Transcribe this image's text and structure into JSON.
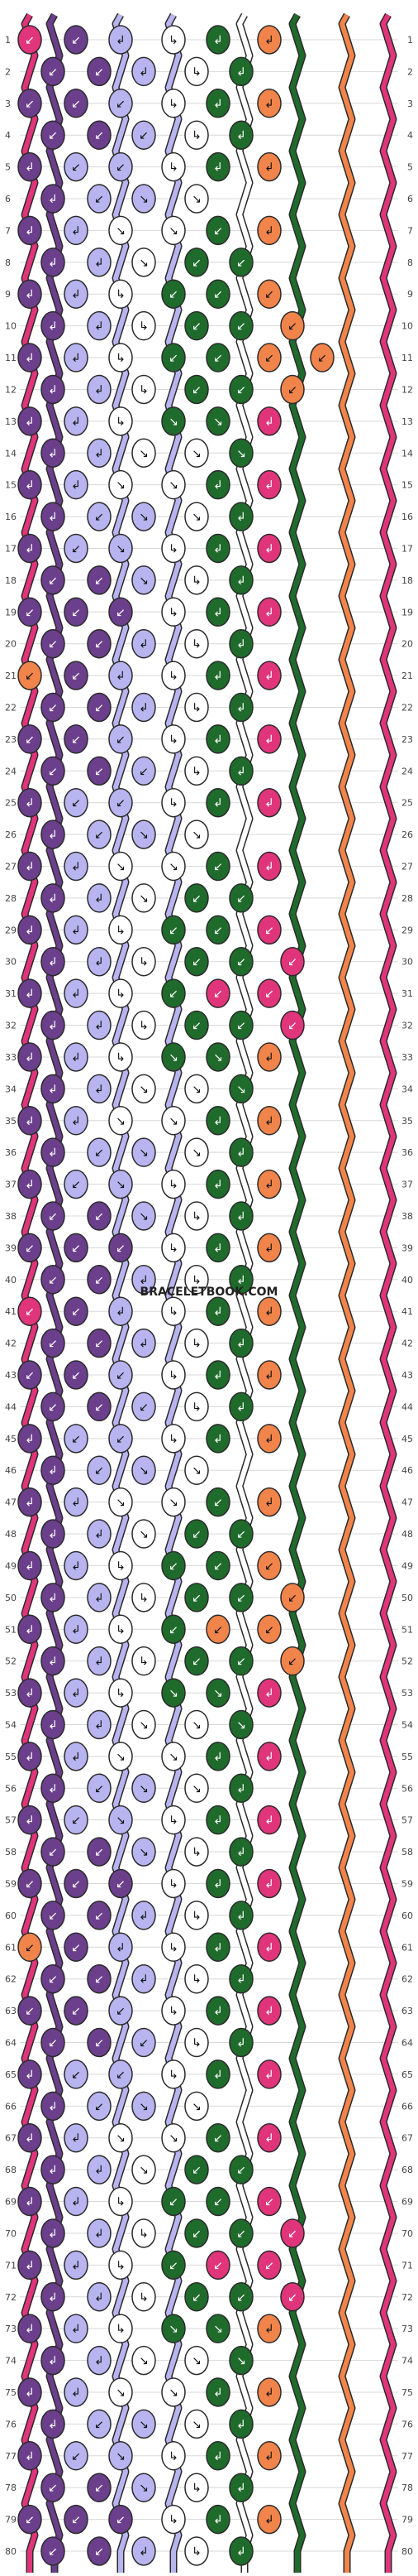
{
  "watermark": "BRACELETBOOK.COM",
  "colors": {
    "pink": "#e0357a",
    "purple": "#6b3f8c",
    "lavender": "#b7b4f0",
    "white": "#ffffff",
    "green": "#1f6b2c",
    "orange": "#f0844a",
    "outline": "#2a2a2a",
    "grid": "#d8d8d8"
  },
  "strings_at_top": [
    "pink",
    "purple",
    "purple",
    "lavender",
    "lavender",
    "white",
    "white",
    "green",
    "green",
    "orange",
    "orange"
  ],
  "row_count": 80,
  "row_labels_left": [
    "1",
    "2",
    "3",
    "4",
    "5",
    "6",
    "7",
    "8",
    "9",
    "10",
    "11",
    "12",
    "13",
    "14",
    "15",
    "16",
    "17",
    "18",
    "19",
    "20",
    "21",
    "22",
    "23",
    "24",
    "25",
    "26",
    "27",
    "28",
    "29",
    "30",
    "31",
    "32",
    "33",
    "34",
    "35",
    "36",
    "37",
    "38",
    "39",
    "40",
    "41",
    "42",
    "43",
    "44",
    "45",
    "46",
    "47",
    "48",
    "49",
    "50",
    "51",
    "52",
    "53",
    "54",
    "55",
    "56",
    "57",
    "58",
    "59",
    "60",
    "61",
    "62",
    "63",
    "64",
    "65",
    "66",
    "67",
    "68",
    "69",
    "70",
    "71",
    "72",
    "73",
    "74",
    "75",
    "76",
    "77",
    "78",
    "79",
    "80"
  ],
  "row_labels_right": [
    "1",
    "2",
    "3",
    "4",
    "5",
    "6",
    "7",
    "8",
    "9",
    "10",
    "11",
    "12",
    "13",
    "14",
    "15",
    "16",
    "17",
    "18",
    "19",
    "20",
    "21",
    "22",
    "23",
    "24",
    "25",
    "26",
    "27",
    "28",
    "29",
    "30",
    "31",
    "32",
    "33",
    "34",
    "35",
    "36",
    "37",
    "38",
    "39",
    "40",
    "41",
    "42",
    "43",
    "44",
    "45",
    "46",
    "47",
    "48",
    "49",
    "50",
    "51",
    "52",
    "53",
    "54",
    "55",
    "56",
    "57",
    "58",
    "59",
    "60",
    "61",
    "62",
    "63",
    "64",
    "65",
    "66",
    "67",
    "68",
    "69",
    "70",
    "71",
    "72",
    "73",
    "74",
    "75",
    "76",
    "77",
    "78",
    "79",
    "80"
  ],
  "knot_symbols": {
    "forward": "↘",
    "backward": "↙",
    "forward_backward": "↳",
    "backward_forward": "↲"
  },
  "knot_rows": [
    [
      "pink:backward",
      "purple:backward",
      "lavender:backward_forward",
      "white:forward_backward",
      "green:backward_forward",
      "orange:backward_forward"
    ],
    [
      "purple:backward",
      "purple:backward",
      "lavender:backward_forward",
      "white:forward_backward",
      "green:backward_forward"
    ],
    [
      "purple:backward",
      "purple:backward",
      "lavender:backward",
      "white:forward_backward",
      "green:backward_forward",
      "orange:backward_forward"
    ],
    [
      "purple:backward",
      "purple:backward",
      "lavender:backward",
      "white:forward_backward",
      "green:backward_forward"
    ],
    [
      "purple:backward_forward",
      "lavender:backward",
      "lavender:backward",
      "white:forward_backward",
      "green:backward_forward",
      "orange:backward_forward"
    ],
    [
      "purple:backward_forward",
      "lavender:backward",
      "lavender:forward",
      "white:forward"
    ],
    [
      "purple:backward_forward",
      "lavender:backward_forward",
      "white:forward",
      "white:forward",
      "green:backward",
      "orange:backward_forward"
    ],
    [
      "purple:backward_forward",
      "lavender:backward_forward",
      "white:forward",
      "green:backward",
      "green:backward"
    ],
    [
      "purple:backward_forward",
      "lavender:backward_forward",
      "white:forward_backward",
      "green:backward",
      "green:backward",
      "orange:backward"
    ],
    [
      "purple:backward_forward",
      "lavender:backward_forward",
      "white:forward_backward",
      "green:backward",
      "green:backward",
      "orange:backward"
    ],
    [
      "purple:backward_forward",
      "lavender:backward_forward",
      "white:forward_backward",
      "green:backward",
      "green:backward",
      "orange:backward",
      "orange:backward"
    ],
    [
      "purple:backward_forward",
      "lavender:backward_forward",
      "white:forward_backward",
      "green:backward",
      "green:backward",
      "orange:backward"
    ],
    [
      "purple:backward_forward",
      "lavender:backward_forward",
      "white:forward_backward",
      "green:forward",
      "green:forward",
      "pink:backward_forward"
    ],
    [
      "purple:backward_forward",
      "lavender:backward_forward",
      "white:forward",
      "white:forward",
      "green:forward"
    ],
    [
      "purple:backward_forward",
      "lavender:backward_forward",
      "white:forward",
      "white:forward",
      "green:backward_forward",
      "pink:backward_forward"
    ],
    [
      "purple:backward_forward",
      "lavender:backward",
      "lavender:forward",
      "white:forward",
      "green:backward_forward"
    ],
    [
      "purple:backward_forward",
      "lavender:backward",
      "lavender:forward",
      "white:forward_backward",
      "green:backward_forward",
      "pink:backward_forward"
    ],
    [
      "purple:backward",
      "purple:backward",
      "lavender:forward",
      "white:forward_backward",
      "green:backward_forward"
    ],
    [
      "purple:backward",
      "purple:backward",
      "purple:backward",
      "white:forward_backward",
      "green:backward_forward",
      "pink:backward_forward"
    ],
    [
      "purple:backward",
      "purple:backward",
      "lavender:backward_forward",
      "white:forward_backward",
      "green:backward_forward"
    ],
    [
      "orange:backward",
      "purple:backward",
      "lavender:backward_forward",
      "white:forward_backward",
      "green:backward_forward",
      "pink:backward_forward"
    ],
    [
      "purple:backward",
      "purple:backward",
      "lavender:backward_forward",
      "white:forward_backward",
      "green:backward_forward"
    ],
    [
      "purple:backward",
      "purple:backward",
      "lavender:backward",
      "white:forward_backward",
      "green:backward_forward",
      "pink:backward_forward"
    ],
    [
      "purple:backward",
      "purple:backward",
      "lavender:backward",
      "white:forward_backward",
      "green:backward_forward"
    ],
    [
      "purple:backward_forward",
      "lavender:backward",
      "lavender:backward",
      "white:forward_backward",
      "green:backward_forward",
      "pink:backward_forward"
    ],
    [
      "purple:backward_forward",
      "lavender:backward",
      "lavender:forward",
      "white:forward"
    ],
    [
      "purple:backward_forward",
      "lavender:backward_forward",
      "white:forward",
      "white:forward",
      "green:backward",
      "pink:backward_forward"
    ],
    [
      "purple:backward_forward",
      "lavender:backward_forward",
      "white:forward",
      "green:backward",
      "green:backward"
    ],
    [
      "purple:backward_forward",
      "lavender:backward_forward",
      "white:forward_backward",
      "green:backward",
      "green:backward",
      "pink:backward"
    ],
    [
      "purple:backward_forward",
      "lavender:backward_forward",
      "white:forward_backward",
      "green:backward",
      "green:backward",
      "pink:backward"
    ],
    [
      "purple:backward_forward",
      "lavender:backward_forward",
      "white:forward_backward",
      "green:backward",
      "pink:backward",
      "pink:backward"
    ],
    [
      "purple:backward_forward",
      "lavender:backward_forward",
      "white:forward_backward",
      "green:backward",
      "green:backward",
      "pink:backward"
    ],
    [
      "purple:backward_forward",
      "lavender:backward_forward",
      "white:forward_backward",
      "green:forward",
      "green:forward",
      "orange:backward_forward"
    ],
    [
      "purple:backward_forward",
      "lavender:backward_forward",
      "white:forward",
      "white:forward",
      "green:forward"
    ],
    [
      "purple:backward_forward",
      "lavender:backward_forward",
      "white:forward",
      "white:forward",
      "green:backward_forward",
      "orange:backward_forward"
    ],
    [
      "purple:backward_forward",
      "lavender:backward",
      "lavender:forward",
      "white:forward",
      "green:backward_forward"
    ],
    [
      "purple:backward_forward",
      "lavender:backward",
      "lavender:forward",
      "white:forward_backward",
      "green:backward_forward",
      "orange:backward_forward"
    ],
    [
      "purple:backward",
      "purple:backward",
      "lavender:forward",
      "white:forward_backward",
      "green:backward_forward"
    ],
    [
      "purple:backward",
      "purple:backward",
      "purple:backward",
      "white:forward_backward",
      "green:backward_forward",
      "orange:backward_forward"
    ],
    [
      "purple:backward",
      "purple:backward",
      "lavender:backward_forward",
      "white:forward_backward",
      "green:backward_forward"
    ],
    [
      "pink:backward",
      "purple:backward",
      "lavender:backward_forward",
      "white:forward_backward",
      "green:backward_forward",
      "orange:backward_forward"
    ],
    [
      "purple:backward",
      "purple:backward",
      "lavender:backward_forward",
      "white:forward_backward",
      "green:backward_forward"
    ],
    [
      "purple:backward",
      "purple:backward",
      "lavender:backward",
      "white:forward_backward",
      "green:backward_forward",
      "orange:backward_forward"
    ],
    [
      "purple:backward",
      "purple:backward",
      "lavender:backward",
      "white:forward_backward",
      "green:backward_forward"
    ],
    [
      "purple:backward_forward",
      "lavender:backward",
      "lavender:backward",
      "white:forward_backward",
      "green:backward_forward",
      "orange:backward_forward"
    ],
    [
      "purple:backward_forward",
      "lavender:backward",
      "lavender:forward",
      "white:forward"
    ],
    [
      "purple:backward_forward",
      "lavender:backward_forward",
      "white:forward",
      "white:forward",
      "green:backward",
      "orange:backward_forward"
    ],
    [
      "purple:backward_forward",
      "lavender:backward_forward",
      "white:forward",
      "green:backward",
      "green:backward"
    ],
    [
      "purple:backward_forward",
      "lavender:backward_forward",
      "white:forward_backward",
      "green:backward",
      "green:backward",
      "orange:backward"
    ],
    [
      "purple:backward_forward",
      "lavender:backward_forward",
      "white:forward_backward",
      "green:backward",
      "green:backward",
      "orange:backward"
    ],
    [
      "purple:backward_forward",
      "lavender:backward_forward",
      "white:forward_backward",
      "green:backward",
      "orange:backward",
      "orange:backward"
    ],
    [
      "purple:backward_forward",
      "lavender:backward_forward",
      "white:forward_backward",
      "green:backward",
      "green:backward",
      "orange:backward"
    ],
    [
      "purple:backward_forward",
      "lavender:backward_forward",
      "white:forward_backward",
      "green:forward",
      "green:forward",
      "pink:backward_forward"
    ],
    [
      "purple:backward_forward",
      "lavender:backward_forward",
      "white:forward",
      "white:forward",
      "green:forward"
    ],
    [
      "purple:backward_forward",
      "lavender:backward_forward",
      "white:forward",
      "white:forward",
      "green:backward_forward",
      "pink:backward_forward"
    ],
    [
      "purple:backward_forward",
      "lavender:backward",
      "lavender:forward",
      "white:forward",
      "green:backward_forward"
    ],
    [
      "purple:backward_forward",
      "lavender:backward",
      "lavender:forward",
      "white:forward_backward",
      "green:backward_forward",
      "pink:backward_forward"
    ],
    [
      "purple:backward",
      "purple:backward",
      "lavender:forward",
      "white:forward_backward",
      "green:backward_forward"
    ],
    [
      "purple:backward",
      "purple:backward",
      "purple:backward",
      "white:forward_backward",
      "green:backward_forward",
      "pink:backward_forward"
    ],
    [
      "purple:backward",
      "purple:backward",
      "lavender:backward_forward",
      "white:forward_backward",
      "green:backward_forward"
    ],
    [
      "orange:backward",
      "purple:backward",
      "lavender:backward_forward",
      "white:forward_backward",
      "green:backward_forward",
      "pink:backward_forward"
    ],
    [
      "purple:backward",
      "purple:backward",
      "lavender:backward_forward",
      "white:forward_backward",
      "green:backward_forward"
    ],
    [
      "purple:backward",
      "purple:backward",
      "lavender:backward",
      "white:forward_backward",
      "green:backward_forward",
      "pink:backward_forward"
    ],
    [
      "purple:backward",
      "purple:backward",
      "lavender:backward",
      "white:forward_backward",
      "green:backward_forward"
    ],
    [
      "purple:backward_forward",
      "lavender:backward",
      "lavender:backward",
      "white:forward_backward",
      "green:backward_forward",
      "pink:backward_forward"
    ],
    [
      "purple:backward_forward",
      "lavender:backward",
      "lavender:forward",
      "white:forward"
    ],
    [
      "purple:backward_forward",
      "lavender:backward_forward",
      "white:forward",
      "white:forward",
      "green:backward",
      "pink:backward_forward"
    ],
    [
      "purple:backward_forward",
      "lavender:backward_forward",
      "white:forward",
      "green:backward",
      "green:backward"
    ],
    [
      "purple:backward_forward",
      "lavender:backward_forward",
      "white:forward_backward",
      "green:backward",
      "green:backward",
      "pink:backward"
    ],
    [
      "purple:backward_forward",
      "lavender:backward_forward",
      "white:forward_backward",
      "green:backward",
      "green:backward",
      "pink:backward"
    ],
    [
      "purple:backward_forward",
      "lavender:backward_forward",
      "white:forward_backward",
      "green:backward",
      "pink:backward",
      "pink:backward"
    ],
    [
      "purple:backward_forward",
      "lavender:backward_forward",
      "white:forward_backward",
      "green:backward",
      "green:backward",
      "pink:backward"
    ],
    [
      "purple:backward_forward",
      "lavender:backward_forward",
      "white:forward_backward",
      "green:forward",
      "green:forward",
      "orange:backward_forward"
    ],
    [
      "purple:backward_forward",
      "lavender:backward_forward",
      "white:forward",
      "white:forward",
      "green:forward"
    ],
    [
      "purple:backward_forward",
      "lavender:backward_forward",
      "white:forward",
      "white:forward",
      "green:backward_forward",
      "orange:backward_forward"
    ],
    [
      "purple:backward_forward",
      "lavender:backward",
      "lavender:forward",
      "white:forward",
      "green:backward_forward"
    ],
    [
      "purple:backward_forward",
      "lavender:backward",
      "lavender:forward",
      "white:forward_backward",
      "green:backward_forward",
      "orange:backward_forward"
    ],
    [
      "purple:backward",
      "purple:backward",
      "lavender:forward",
      "white:forward_backward",
      "green:backward_forward"
    ],
    [
      "purple:backward",
      "purple:backward",
      "purple:backward",
      "white:forward_backward",
      "green:backward_forward",
      "orange:backward_forward"
    ],
    [
      "purple:backward",
      "purple:backward",
      "lavender:backward_forward",
      "white:forward_backward",
      "green:backward_forward"
    ]
  ]
}
